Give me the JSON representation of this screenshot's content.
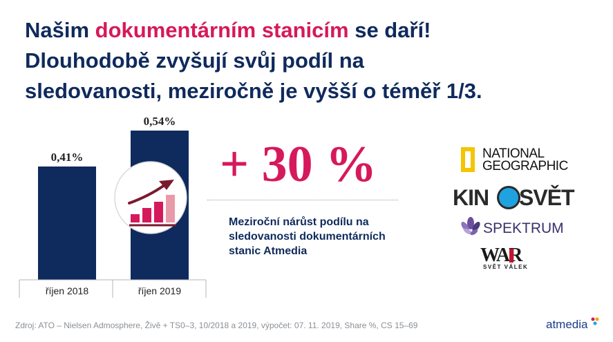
{
  "title": {
    "part1": "Našim ",
    "accent": "dokumentárním stanicím",
    "part2": " se daří!",
    "line2": "Dlouhodobě zvyšují svůj podíl na",
    "line3": "sledovanosti, meziročně je vyšší o téměř 1/3."
  },
  "chart_data": {
    "type": "bar",
    "categories": [
      "říjen 2018",
      "říjen 2019"
    ],
    "values": [
      0.41,
      0.54
    ],
    "value_labels": [
      "0,41%",
      "0,54%"
    ],
    "ylim": [
      0,
      0.6
    ],
    "bar_color": "#0f2a5c"
  },
  "highlight": {
    "big_number": "+ 30 %",
    "description": "Meziroční nárůst podílu na sledovanosti dokumentárních stanic Atmedia"
  },
  "logos": {
    "national_geographic": {
      "line1": "NATIONAL",
      "line2": "GEOGRAPHIC"
    },
    "kinosvet": {
      "left": "KIN",
      "right": "SVĚT"
    },
    "spektrum": {
      "text": "SPEKTRUM"
    },
    "war": {
      "text": "WAR",
      "subtitle": "SVĚT VÁLEK"
    }
  },
  "source_text": "Zdroj: ATO – Nielsen Admosphere, Živě + TS0–3, 10/2018 a 2019, výpočet: 07. 11. 2019, Share %, CS 15–69",
  "brand": "atmedia",
  "colors": {
    "navy": "#0f2a5c",
    "accent": "#d6195b"
  },
  "icon": "growth-chart-icon"
}
